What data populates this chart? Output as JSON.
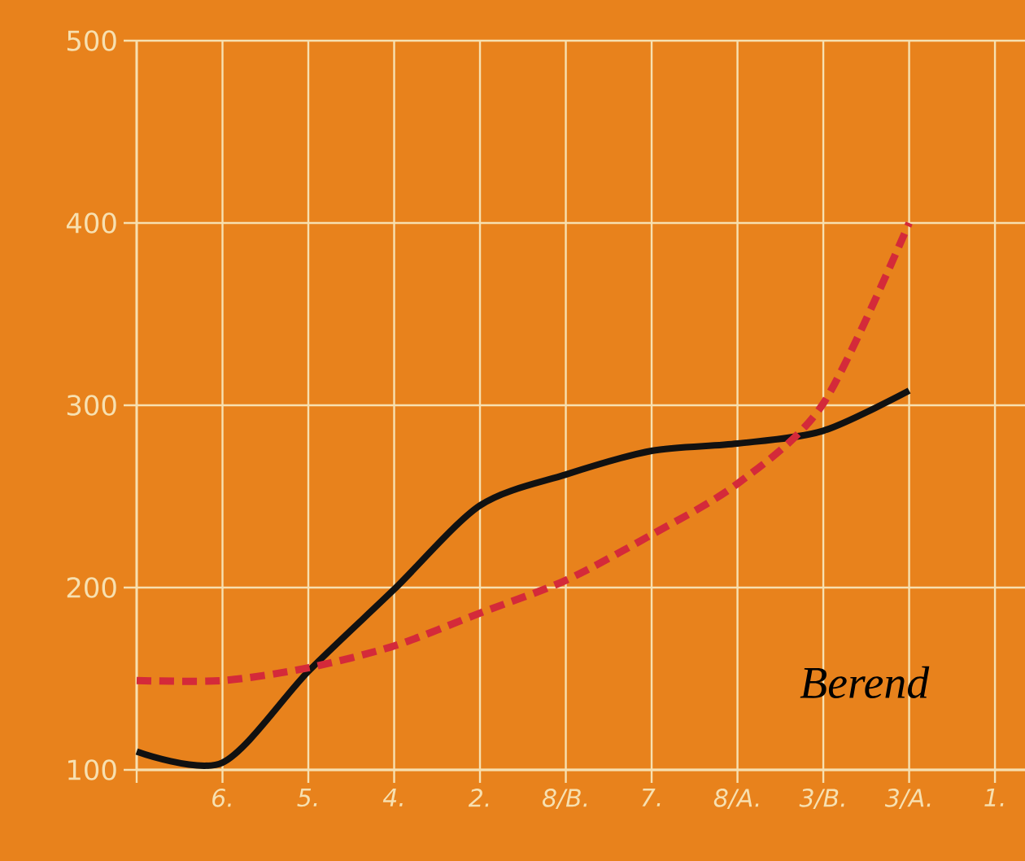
{
  "chart_data": {
    "type": "line",
    "categories": [
      null,
      "6.",
      "5.",
      "4.",
      "2.",
      "8/B.",
      "7.",
      "8/A.",
      "3/B.",
      "3/A.",
      "1."
    ],
    "series": [
      {
        "color": "#111111",
        "line_style": "solid",
        "values": [
          110,
          104,
          154,
          199,
          245,
          262,
          275,
          279,
          286,
          308,
          null
        ]
      },
      {
        "color": "#d42a3a",
        "line_style": "dashed",
        "values": [
          149,
          149,
          156,
          168,
          186,
          204,
          229,
          257,
          301,
          400,
          null
        ]
      }
    ],
    "ylim": [
      100,
      500
    ],
    "yticks": [
      100,
      200,
      300,
      400,
      500
    ],
    "grid": true,
    "marker": "none",
    "annotations": [
      "Berend"
    ]
  }
}
